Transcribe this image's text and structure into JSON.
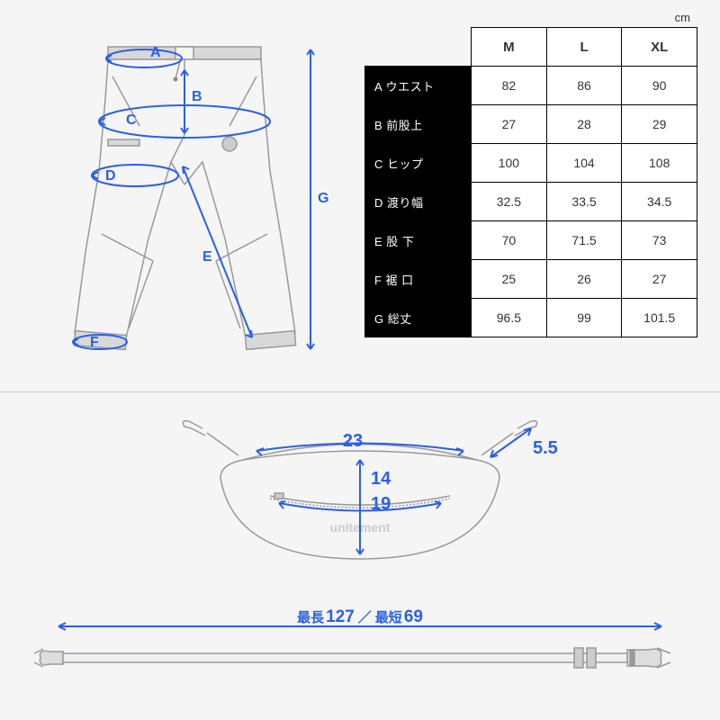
{
  "unit": "cm",
  "colors": {
    "blue": "#2a5fe8",
    "line": "#999999",
    "waistband": "#d0d0d0",
    "bg": "#f5f5f5",
    "white": "#ffffff",
    "black": "#000000"
  },
  "pants_labels": {
    "A": "A",
    "B": "B",
    "C": "C",
    "D": "D",
    "E": "E",
    "F": "F",
    "G": "G"
  },
  "table": {
    "sizes": [
      "M",
      "L",
      "XL"
    ],
    "rows": [
      {
        "key": "A",
        "label": "A ウエスト",
        "vals": [
          "82",
          "86",
          "90"
        ]
      },
      {
        "key": "B",
        "label": "B 前股上",
        "vals": [
          "27",
          "28",
          "29"
        ]
      },
      {
        "key": "C",
        "label": "C ヒップ",
        "vals": [
          "100",
          "104",
          "108"
        ]
      },
      {
        "key": "D",
        "label": "D 渡り幅",
        "vals": [
          "32.5",
          "33.5",
          "34.5"
        ]
      },
      {
        "key": "E",
        "label": "E 股 下",
        "vals": [
          "70",
          "71.5",
          "73"
        ]
      },
      {
        "key": "F",
        "label": "F 裾 口",
        "vals": [
          "25",
          "26",
          "27"
        ]
      },
      {
        "key": "G",
        "label": "G 総丈",
        "vals": [
          "96.5",
          "99",
          "101.5"
        ]
      }
    ]
  },
  "bag": {
    "top_width": "23",
    "height": "14",
    "zipper": "19",
    "clip": "5.5",
    "brand": "unitement"
  },
  "strap": {
    "label_prefix": "最長",
    "max": "127",
    "sep": "／",
    "label_prefix2": "最短",
    "min": "69"
  }
}
